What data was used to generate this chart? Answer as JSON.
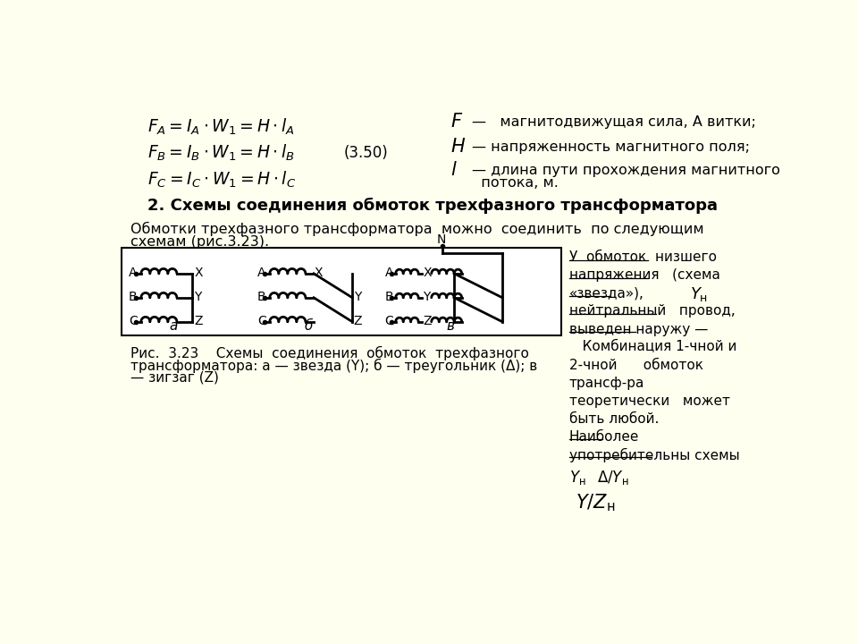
{
  "bg_color": "#FFFFF0",
  "title": "2. Схемы соединения обмоток трехфазного трансформатора",
  "intro_line1": "Обмотки трехфазного трансформатора  можно  соединить  по следующим",
  "intro_line2": "схемам (рис.3.23).",
  "formula_label": "(3.50)",
  "caption_line1": "Рис.  3.23    Схемы  соединения  обмоток  трехфазного",
  "caption_line2": "трансформатора: а — звезда (Y); б — треугольник (Δ); в",
  "caption_line3": "— зигзаг (Z)",
  "right_lines": [
    "У  обмоток  низшего",
    "напряжения   (схема",
    "«звезда»),",
    "нейтральный   провод,",
    "выведен наружу —",
    "   Комбинация 1-чной и",
    "2-чной      обмоток",
    "трансф-ра",
    "теоретически   может",
    "быть любой.",
    "Наиболее",
    "употребительны схемы"
  ],
  "right_underline_rows": [
    0,
    1,
    2,
    3,
    4,
    10,
    11
  ],
  "leg_F": "F",
  "leg_F_text": "—   магнитодвижущая сила, А витки;",
  "leg_H": "H",
  "leg_H_text": "— напряженность магнитного поля;",
  "leg_l": "l",
  "leg_l_text1": "— длина пути прохождения магнитного",
  "leg_l_text2": "  потока, м."
}
